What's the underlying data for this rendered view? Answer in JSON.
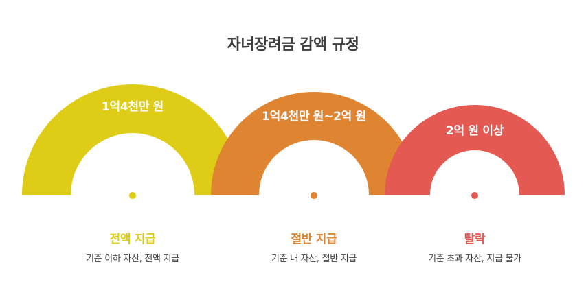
{
  "title": "자녀장려금 감액 규정",
  "colors": {
    "yellow": "#dfcc16",
    "orange": "#df8431",
    "red": "#e45a52",
    "title": "#3f3f3f",
    "text": "#444444"
  },
  "stages": [
    {
      "arc_label": "1억4천만 원",
      "heading": "전액 지급",
      "description": "기준 이하 자산, 전액 지급",
      "color": "#dfcc16"
    },
    {
      "arc_label": "1억4천만 원~2억 원",
      "heading": "절반 지급",
      "description": "기준 내 자산, 절반 지급",
      "color": "#df8431"
    },
    {
      "arc_label": "2억 원 이상",
      "heading": "탈락",
      "description": "기준 초과 자산, 지급 불가",
      "color": "#e45a52"
    }
  ]
}
